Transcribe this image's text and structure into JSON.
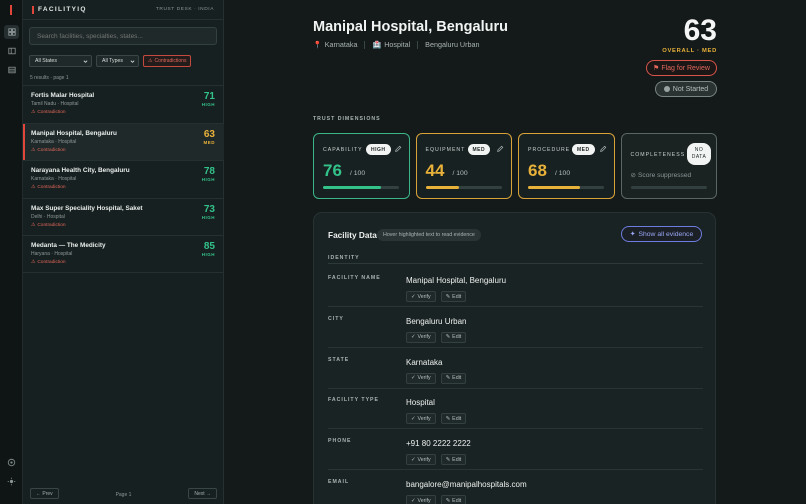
{
  "app": {
    "logo": "FACILITYIQ",
    "desk": "TRUST DESK · INDIA"
  },
  "search": {
    "placeholder": "Search facilities, specialties, states..."
  },
  "filters": {
    "state": "All States",
    "type": "All Types",
    "contradictions": "Contradictions"
  },
  "results_label": "5 results · page 1",
  "facilities": [
    {
      "name": "Fortis Malar Hospital",
      "meta": "Tamil Nadu · Hospital",
      "flag": "Contradiction",
      "score": "71",
      "level": "HIGH",
      "selected": false
    },
    {
      "name": "Manipal Hospital, Bengaluru",
      "meta": "Karnataka · Hospital",
      "flag": "Contradiction",
      "score": "63",
      "level": "MED",
      "selected": true
    },
    {
      "name": "Narayana Health City, Bengaluru",
      "meta": "Karnataka · Hospital",
      "flag": "Contradiction",
      "score": "78",
      "level": "HIGH",
      "selected": false
    },
    {
      "name": "Max Super Speciality Hospital, Saket",
      "meta": "Delhi · Hospital",
      "flag": "Contradiction",
      "score": "73",
      "level": "HIGH",
      "selected": false
    },
    {
      "name": "Medanta — The Medicity",
      "meta": "Haryana · Hospital",
      "flag": "Contradiction",
      "score": "85",
      "level": "HIGH",
      "selected": false
    }
  ],
  "pager": {
    "prev": "← Prev",
    "page": "Page 1",
    "next": "Next →"
  },
  "detail": {
    "title": "Manipal Hospital, Bengaluru",
    "state": "Karnataka",
    "type": "Hospital",
    "district": "Bengaluru Urban",
    "overall_score": "63",
    "overall_label": "OVERALL · MED",
    "flag_button": "Flag for Review",
    "status_button": "Not Started"
  },
  "trust": {
    "section_label": "TRUST DIMENSIONS",
    "cards": [
      {
        "label": "CAPABILITY",
        "level": "HIGH",
        "value": "76",
        "of": "/ 100",
        "progress": 0.76,
        "color": "#33c28a"
      },
      {
        "label": "EQUIPMENT",
        "level": "MED",
        "value": "44",
        "of": "/ 100",
        "progress": 0.44,
        "color": "#e8b23a"
      },
      {
        "label": "PROCEDURE",
        "level": "MED",
        "value": "68",
        "of": "/ 100",
        "progress": 0.68,
        "color": "#e8b23a"
      }
    ],
    "completeness": {
      "label": "COMPLETENESS",
      "badge_line1": "NO",
      "badge_line2": "DATA",
      "note": "Score suppressed"
    }
  },
  "facility_data": {
    "title": "Facility Data",
    "hint": "Hover highlighted text to read evidence",
    "evidence_button": "Show all evidence",
    "group": "IDENTITY",
    "verify_label": "Verify",
    "edit_label": "Edit",
    "fields": [
      {
        "label": "FACILITY NAME",
        "value": "Manipal Hospital, Bengaluru"
      },
      {
        "label": "CITY",
        "value": "Bengaluru Urban"
      },
      {
        "label": "STATE",
        "value": "Karnataka"
      },
      {
        "label": "FACILITY TYPE",
        "value": "Hospital"
      },
      {
        "label": "PHONE",
        "value": "+91 80 2222 2222"
      },
      {
        "label": "EMAIL",
        "value": "bangalore@manipalhospitals.com"
      }
    ]
  }
}
